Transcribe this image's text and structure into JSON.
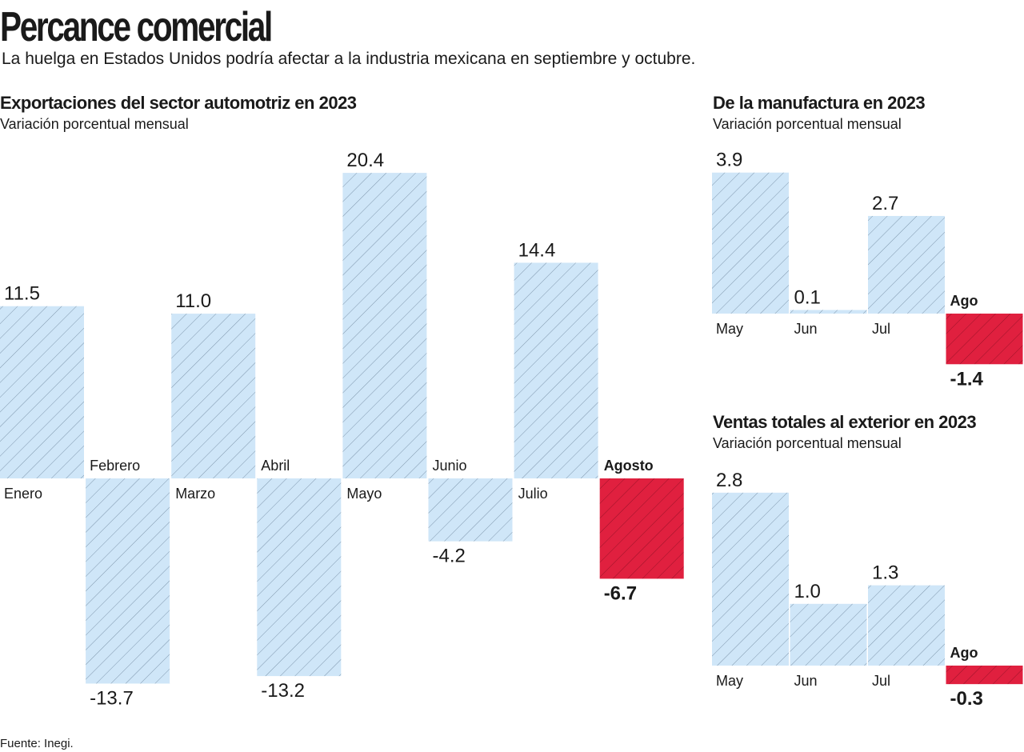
{
  "header": {
    "title": "Percance comercial",
    "subtitle": "La huelga en Estados Unidos podría afectar a la industria mexicana en septiembre y octubre."
  },
  "colors": {
    "positive_fill": "#cfe6f8",
    "positive_hatch": "#7f97ad",
    "highlight_fill": "#e0203f",
    "highlight_hatch": "#9a1228"
  },
  "chart_data": [
    {
      "type": "bar",
      "title": "Exportaciones del sector automotriz en 2023",
      "subtitle": "Variación porcentual mensual",
      "categories": [
        "Enero",
        "Febrero",
        "Marzo",
        "Abril",
        "Mayo",
        "Junio",
        "Julio",
        "Agosto"
      ],
      "values": [
        11.5,
        -13.7,
        11.0,
        -13.2,
        20.4,
        -4.2,
        14.4,
        -6.7
      ],
      "value_labels": [
        "11.5",
        "-13.7",
        "11.0",
        "-13.2",
        "20.4",
        "-4.2",
        "14.4",
        "-6.7"
      ],
      "highlight": "Agosto",
      "xlabel": "",
      "ylabel": "",
      "grid": false
    },
    {
      "type": "bar",
      "title": "De la manufactura en 2023",
      "subtitle": "Variación porcentual mensual",
      "categories": [
        "May",
        "Jun",
        "Jul",
        "Ago"
      ],
      "values": [
        3.9,
        0.1,
        2.7,
        -1.4
      ],
      "value_labels": [
        "3.9",
        "0.1",
        "2.7",
        "-1.4"
      ],
      "highlight": "Ago",
      "xlabel": "",
      "ylabel": "",
      "grid": false
    },
    {
      "type": "bar",
      "title": "Ventas totales al exterior en 2023",
      "subtitle": "Variación porcentual mensual",
      "categories": [
        "May",
        "Jun",
        "Jul",
        "Ago"
      ],
      "values": [
        2.8,
        1.0,
        1.3,
        -0.3
      ],
      "value_labels": [
        "2.8",
        "1.0",
        "1.3",
        "-0.3"
      ],
      "highlight": "Ago",
      "xlabel": "",
      "ylabel": "",
      "grid": false
    }
  ],
  "footer": {
    "source": "Fuente: Inegi."
  }
}
